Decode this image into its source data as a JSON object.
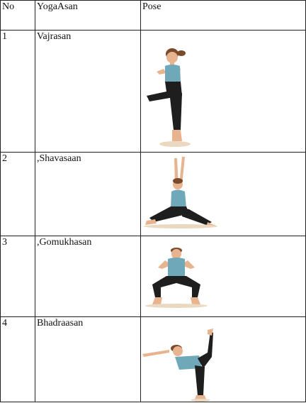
{
  "table": {
    "headers": [
      "No",
      "YogaAsan",
      "Pose"
    ],
    "rows": [
      {
        "no": "1",
        "asan": "Vajrasan",
        "pose_icon": "tree-pose-figure-icon"
      },
      {
        "no": "2",
        "asan": ",Shavasaan",
        "pose_icon": "warrior-pose-figure-icon"
      },
      {
        "no": "3",
        "asan": ",Gomukhasan",
        "pose_icon": "goddess-pose-figure-icon"
      },
      {
        "no": "4",
        "asan": "Bhadraasan",
        "pose_icon": "dancer-pose-figure-icon"
      }
    ]
  },
  "colors": {
    "top": "#6fa8b8",
    "pants": "#1e1e1e",
    "skin": "#e8b490",
    "hair": "#7a4a2a"
  }
}
